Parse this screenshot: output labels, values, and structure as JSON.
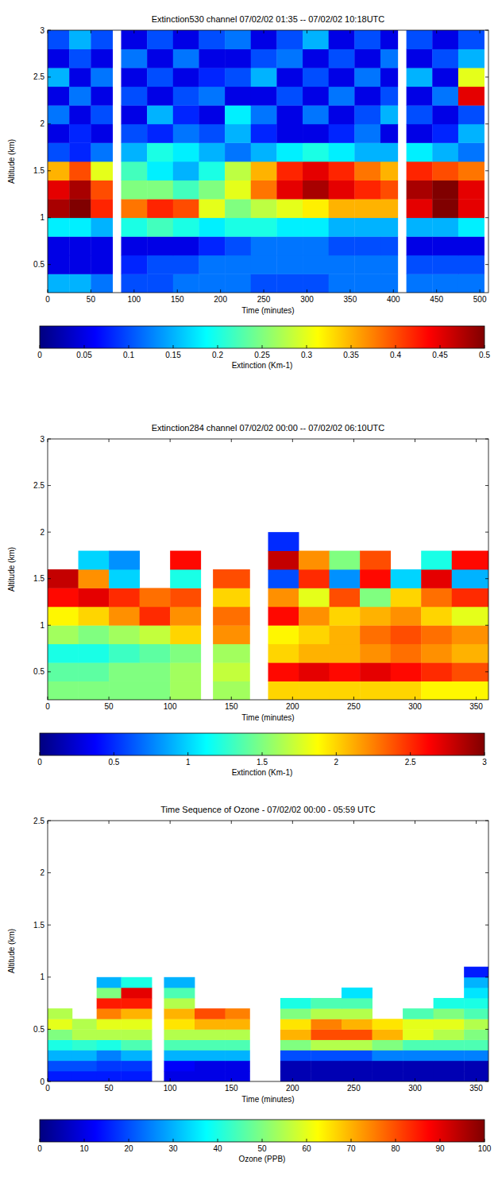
{
  "chart_data": [
    {
      "type": "heatmap",
      "title": "Extinction530 channel 07/02/02   01:35 -- 07/02/02   10:18UTC",
      "x_label": "Time (minutes)",
      "y_label": "Altitude (km)",
      "xlim": [
        0,
        510
      ],
      "ylim": [
        0.2,
        3
      ],
      "xticks": [
        0,
        50,
        100,
        150,
        200,
        250,
        300,
        350,
        400,
        450,
        500
      ],
      "yticks": [
        0.5,
        1,
        1.5,
        2,
        2.5,
        3
      ],
      "x_bins": [
        0,
        25,
        50,
        75,
        85,
        115,
        145,
        175,
        205,
        235,
        265,
        295,
        325,
        355,
        385,
        405,
        415,
        445,
        475,
        505,
        510
      ],
      "y_bins": [
        0.2,
        0.4,
        0.6,
        0.8,
        1.0,
        1.2,
        1.4,
        1.6,
        1.8,
        2.0,
        2.2,
        2.4,
        2.6,
        2.8,
        3.0
      ],
      "cells": [
        [
          0.15,
          0.15,
          0.12,
          null,
          0.1,
          0.1,
          0.12,
          0.12,
          0.12,
          0.1,
          0.1,
          0.1,
          0.12,
          0.12,
          0.12,
          null,
          0.12,
          0.12,
          0.12,
          null
        ],
        [
          0.05,
          0.05,
          0.05,
          null,
          0.08,
          0.1,
          0.1,
          0.12,
          0.12,
          0.12,
          0.12,
          0.12,
          0.12,
          0.12,
          0.12,
          null,
          0.1,
          0.1,
          0.1,
          null
        ],
        [
          0.05,
          0.05,
          0.05,
          null,
          0.05,
          0.05,
          0.05,
          0.08,
          0.1,
          0.12,
          0.12,
          0.12,
          0.1,
          0.1,
          0.1,
          null,
          0.05,
          0.05,
          0.05,
          null
        ],
        [
          0.18,
          0.18,
          0.15,
          null,
          0.2,
          0.22,
          0.2,
          0.18,
          0.2,
          0.2,
          0.18,
          0.18,
          0.15,
          0.15,
          0.15,
          null,
          0.15,
          0.15,
          0.18,
          null
        ],
        [
          0.48,
          0.5,
          0.42,
          null,
          0.38,
          0.42,
          0.4,
          0.3,
          0.25,
          0.28,
          0.3,
          0.32,
          0.35,
          0.35,
          0.35,
          null,
          0.45,
          0.5,
          0.45,
          null
        ],
        [
          0.45,
          0.48,
          0.4,
          null,
          0.25,
          0.25,
          0.22,
          0.25,
          0.3,
          0.38,
          0.45,
          0.48,
          0.45,
          0.42,
          0.4,
          null,
          0.48,
          0.5,
          0.45,
          null
        ],
        [
          0.35,
          0.4,
          0.3,
          null,
          0.22,
          0.18,
          0.15,
          0.2,
          0.28,
          0.35,
          0.42,
          0.45,
          0.42,
          0.38,
          0.35,
          null,
          0.42,
          0.4,
          0.38,
          null
        ],
        [
          0.1,
          0.08,
          0.12,
          null,
          0.15,
          0.2,
          0.18,
          0.15,
          0.12,
          0.15,
          0.18,
          0.2,
          0.18,
          0.15,
          0.15,
          null,
          0.18,
          0.15,
          0.12,
          null
        ],
        [
          0.05,
          0.08,
          0.05,
          null,
          0.1,
          0.08,
          0.12,
          0.1,
          0.15,
          0.08,
          0.05,
          0.05,
          0.08,
          0.12,
          0.05,
          null,
          0.05,
          0.08,
          0.15,
          null
        ],
        [
          0.12,
          0.05,
          0.1,
          null,
          0.05,
          0.15,
          0.08,
          0.05,
          0.18,
          0.12,
          0.05,
          0.12,
          0.05,
          0.1,
          0.15,
          null,
          0.1,
          0.05,
          0.1,
          null
        ],
        [
          0.05,
          0.12,
          0.05,
          null,
          0.1,
          0.05,
          0.1,
          0.12,
          0.05,
          0.05,
          0.1,
          0.05,
          0.12,
          0.05,
          0.1,
          null,
          0.05,
          0.12,
          0.45,
          null
        ],
        [
          0.15,
          0.05,
          0.12,
          null,
          0.05,
          0.1,
          0.05,
          0.08,
          0.1,
          0.15,
          0.05,
          0.1,
          0.05,
          0.12,
          0.05,
          null,
          0.15,
          0.05,
          0.3,
          null
        ],
        [
          0.05,
          0.1,
          0.05,
          null,
          0.12,
          0.05,
          0.12,
          0.05,
          0.05,
          0.1,
          0.12,
          0.05,
          0.1,
          0.05,
          0.12,
          null,
          0.05,
          0.1,
          0.15,
          null
        ],
        [
          0.1,
          0.15,
          0.1,
          null,
          0.05,
          0.1,
          0.05,
          0.1,
          0.12,
          0.05,
          0.1,
          0.15,
          0.05,
          0.1,
          0.05,
          null,
          0.1,
          0.05,
          0.1,
          null
        ]
      ],
      "colorbar": {
        "label": "Extinction (Km-1)",
        "range": [
          0,
          0.5
        ],
        "ticks": [
          0,
          0.05,
          0.1,
          0.15,
          0.2,
          0.25,
          0.3,
          0.35,
          0.4,
          0.45,
          0.5
        ]
      }
    },
    {
      "type": "heatmap",
      "title": "Extinction284 channel 07/02/02   00:00 -- 07/02/02   06:10UTC",
      "x_label": "Time (minutes)",
      "y_label": "Altitude (km)",
      "xlim": [
        0,
        360
      ],
      "ylim": [
        0.2,
        3
      ],
      "xticks": [
        0,
        50,
        100,
        150,
        200,
        250,
        300,
        350
      ],
      "yticks": [
        0.5,
        1,
        1.5,
        2,
        2.5,
        3
      ],
      "x_bins": [
        0,
        25,
        50,
        75,
        100,
        125,
        135,
        165,
        180,
        205,
        230,
        255,
        280,
        305,
        330,
        360
      ],
      "y_bins": [
        0.2,
        0.4,
        0.6,
        0.8,
        1.0,
        1.2,
        1.4,
        1.6,
        1.8,
        2.0
      ],
      "cells": [
        [
          1.5,
          1.5,
          1.5,
          1.5,
          1.6,
          null,
          1.6,
          null,
          2.0,
          2.0,
          2.0,
          2.0,
          2.0,
          1.9,
          1.9
        ],
        [
          1.4,
          1.4,
          1.5,
          1.5,
          1.6,
          null,
          1.7,
          null,
          2.6,
          2.7,
          2.6,
          2.7,
          2.6,
          2.5,
          2.4
        ],
        [
          1.2,
          1.2,
          1.3,
          1.4,
          1.5,
          null,
          1.6,
          null,
          2.0,
          2.1,
          2.1,
          2.2,
          2.3,
          2.2,
          2.1
        ],
        [
          1.6,
          1.5,
          1.6,
          1.7,
          2.0,
          null,
          2.2,
          null,
          1.9,
          2.0,
          2.1,
          2.3,
          2.4,
          2.3,
          2.2
        ],
        [
          1.9,
          2.0,
          2.2,
          2.5,
          2.2,
          null,
          2.3,
          null,
          2.6,
          2.2,
          2.0,
          2.1,
          2.2,
          2.0,
          1.8
        ],
        [
          2.6,
          2.7,
          2.5,
          2.3,
          2.4,
          null,
          2.0,
          null,
          2.2,
          1.8,
          2.4,
          1.5,
          2.0,
          2.3,
          2.5
        ],
        [
          2.8,
          2.2,
          1.0,
          null,
          1.2,
          null,
          2.4,
          null,
          0.6,
          2.5,
          0.8,
          2.6,
          1.0,
          2.7,
          0.9
        ],
        [
          null,
          1.0,
          0.8,
          null,
          2.6,
          null,
          null,
          null,
          2.8,
          2.2,
          1.5,
          2.4,
          null,
          1.2,
          2.6
        ],
        [
          null,
          null,
          null,
          null,
          null,
          null,
          null,
          null,
          0.5,
          null,
          null,
          null,
          null,
          null,
          null
        ]
      ],
      "colorbar": {
        "label": "Extinction (Km-1)",
        "range": [
          0,
          3
        ],
        "ticks": [
          0,
          0.5,
          1,
          1.5,
          2,
          2.5,
          3
        ]
      }
    },
    {
      "type": "heatmap",
      "title": "Time Sequence of Ozone - 07/02/02 00:00 -  05:59 UTC",
      "x_label": "Time (minutes)",
      "y_label": "Altitude (km)",
      "xlim": [
        0,
        360
      ],
      "ylim": [
        0,
        2.5
      ],
      "xticks": [
        0,
        50,
        100,
        150,
        200,
        250,
        300,
        350
      ],
      "yticks": [
        0,
        0.5,
        1,
        1.5,
        2,
        2.5
      ],
      "x_bins": [
        0,
        20,
        40,
        60,
        85,
        95,
        120,
        145,
        165,
        190,
        215,
        240,
        265,
        290,
        315,
        340,
        360
      ],
      "y_bins": [
        0,
        0.1,
        0.2,
        0.3,
        0.4,
        0.5,
        0.6,
        0.7,
        0.8,
        0.9,
        1.0,
        1.1
      ],
      "cells": [
        [
          15,
          15,
          15,
          15,
          null,
          10,
          10,
          10,
          null,
          5,
          5,
          5,
          5,
          5,
          5,
          5
        ],
        [
          20,
          20,
          18,
          18,
          null,
          12,
          10,
          10,
          null,
          5,
          5,
          5,
          5,
          5,
          5,
          5
        ],
        [
          30,
          30,
          25,
          30,
          null,
          30,
          30,
          30,
          null,
          20,
          20,
          20,
          25,
          25,
          25,
          25
        ],
        [
          40,
          42,
          40,
          45,
          null,
          45,
          45,
          45,
          null,
          50,
          55,
          55,
          50,
          45,
          45,
          45
        ],
        [
          50,
          55,
          55,
          55,
          null,
          55,
          55,
          55,
          null,
          70,
          80,
          80,
          70,
          60,
          55,
          50
        ],
        [
          60,
          55,
          60,
          60,
          null,
          65,
          70,
          70,
          null,
          65,
          75,
          70,
          65,
          60,
          60,
          55
        ],
        [
          55,
          null,
          75,
          70,
          null,
          70,
          80,
          75,
          null,
          50,
          55,
          55,
          null,
          45,
          50,
          45
        ],
        [
          null,
          null,
          85,
          85,
          null,
          55,
          null,
          null,
          null,
          40,
          45,
          45,
          null,
          null,
          40,
          40
        ],
        [
          null,
          null,
          50,
          90,
          null,
          45,
          null,
          null,
          null,
          null,
          null,
          35,
          null,
          null,
          null,
          35
        ],
        [
          null,
          null,
          30,
          40,
          null,
          30,
          null,
          null,
          null,
          null,
          null,
          null,
          null,
          null,
          null,
          30
        ],
        [
          null,
          null,
          null,
          null,
          null,
          null,
          null,
          null,
          null,
          null,
          null,
          null,
          null,
          null,
          null,
          15
        ]
      ],
      "colorbar": {
        "label": "Ozone (PPB)",
        "range": [
          0,
          100
        ],
        "ticks": [
          0,
          10,
          20,
          30,
          40,
          50,
          60,
          70,
          80,
          90,
          100
        ]
      }
    }
  ]
}
